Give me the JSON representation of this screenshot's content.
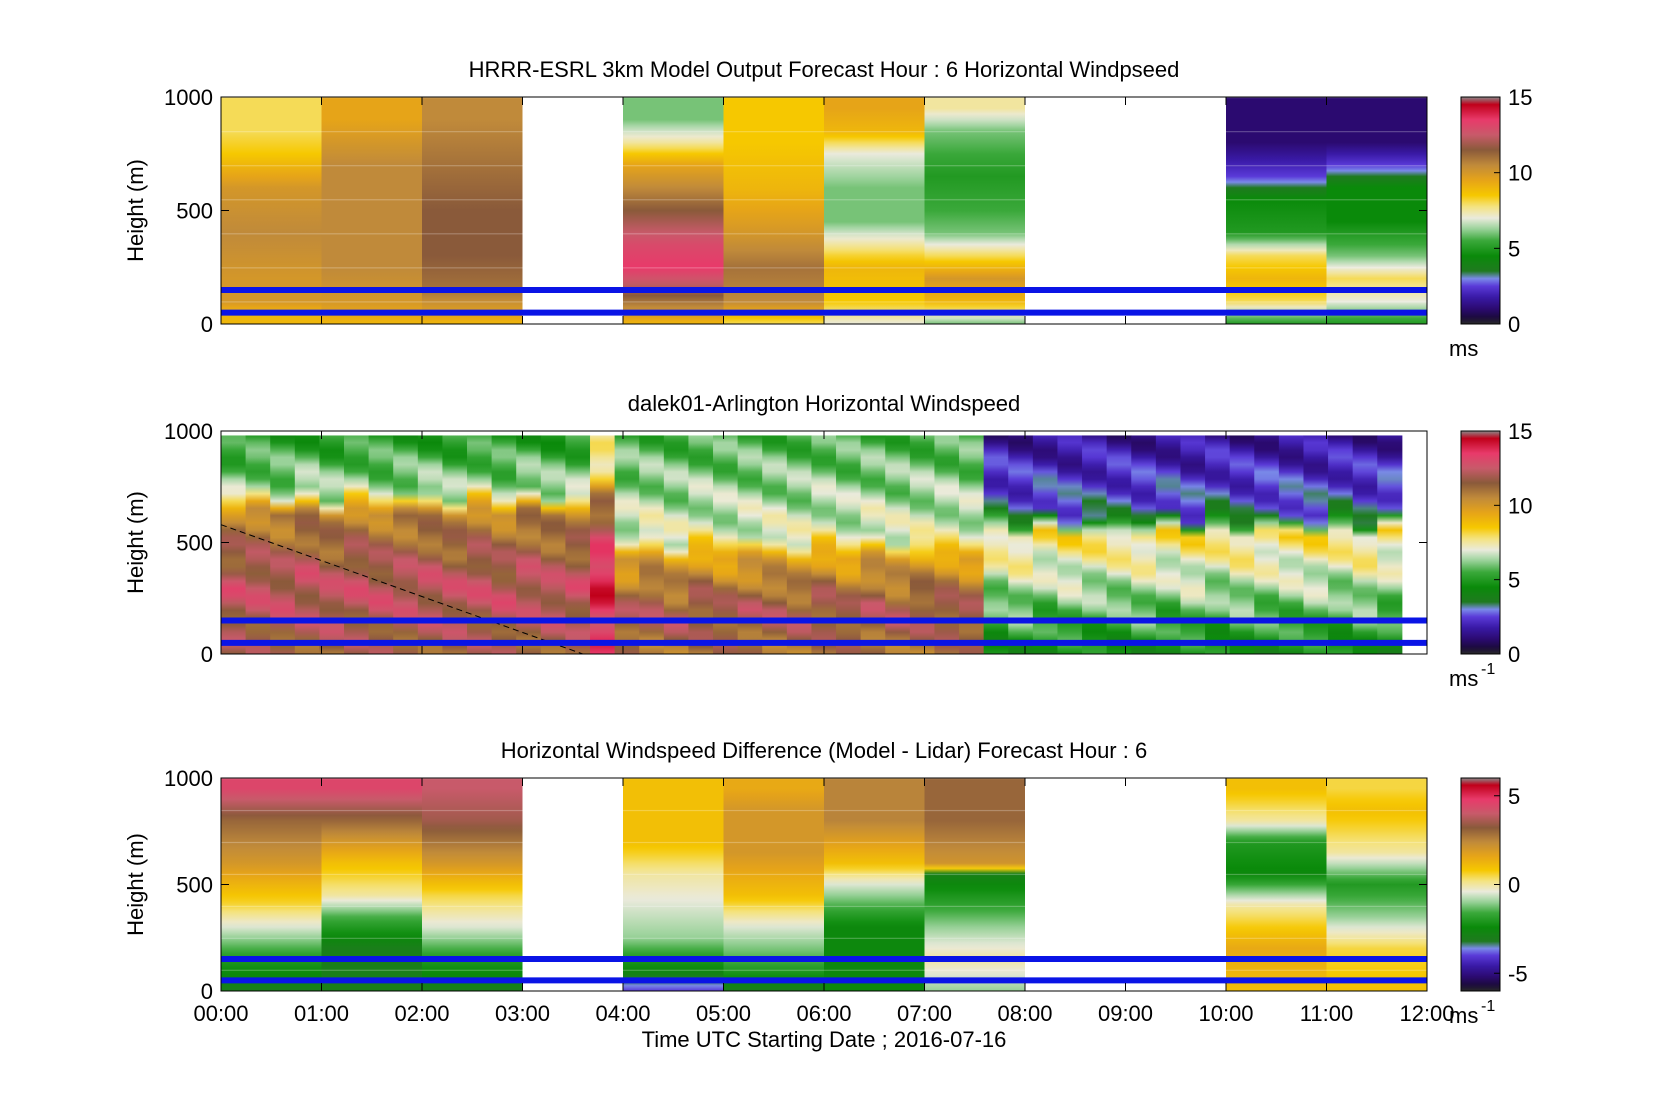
{
  "chart_data": [
    {
      "type": "heatmap",
      "title": "HRRR-ESRL 3km Model Output   Forecast Hour : 6 Horizontal Windpseed",
      "xlabel": "",
      "ylabel": "Height (m)",
      "ylim": [
        0,
        1000
      ],
      "yticks": [
        0,
        500,
        1000
      ],
      "xlim": [
        0,
        12
      ],
      "colorbar": {
        "min": 0,
        "max": 15,
        "ticks": [
          0,
          5,
          10,
          15
        ],
        "label": "ms",
        "label_sup": ""
      },
      "columns": [
        {
          "t": 0,
          "profile": [
            [
              0,
              9
            ],
            [
              50,
              9
            ],
            [
              100,
              10
            ],
            [
              200,
              10
            ],
            [
              400,
              10.5
            ],
            [
              600,
              10
            ],
            [
              750,
              8.5
            ],
            [
              850,
              8
            ]
          ]
        },
        {
          "t": 1,
          "profile": [
            [
              0,
              9
            ],
            [
              100,
              10
            ],
            [
              250,
              10.5
            ],
            [
              500,
              10.5
            ],
            [
              700,
              10.5
            ],
            [
              900,
              9.5
            ]
          ]
        },
        {
          "t": 2,
          "profile": [
            [
              0,
              9
            ],
            [
              150,
              11
            ],
            [
              300,
              11.5
            ],
            [
              500,
              11.5
            ],
            [
              700,
              11
            ],
            [
              900,
              10.5
            ]
          ]
        },
        {
          "t": 4,
          "profile": [
            [
              0,
              9
            ],
            [
              150,
              12
            ],
            [
              250,
              13.5
            ],
            [
              350,
              13
            ],
            [
              500,
              11.5
            ],
            [
              600,
              10.5
            ],
            [
              700,
              9.5
            ],
            [
              800,
              7.5
            ],
            [
              900,
              6
            ]
          ]
        },
        {
          "t": 5,
          "profile": [
            [
              0,
              8
            ],
            [
              100,
              10.5
            ],
            [
              250,
              11
            ],
            [
              400,
              10
            ],
            [
              600,
              9
            ],
            [
              800,
              8.5
            ],
            [
              900,
              8.5
            ]
          ]
        },
        {
          "t": 6,
          "profile": [
            [
              0,
              7
            ],
            [
              100,
              8.5
            ],
            [
              250,
              9
            ],
            [
              350,
              7.5
            ],
            [
              450,
              6
            ],
            [
              600,
              6
            ],
            [
              750,
              7
            ],
            [
              850,
              9
            ],
            [
              950,
              9.5
            ]
          ]
        },
        {
          "t": 7,
          "profile": [
            [
              0,
              6
            ],
            [
              100,
              9
            ],
            [
              200,
              10
            ],
            [
              300,
              8
            ],
            [
              400,
              6
            ],
            [
              500,
              5.5
            ],
            [
              650,
              5
            ],
            [
              850,
              6
            ],
            [
              950,
              7.5
            ]
          ]
        },
        {
          "t": 10,
          "profile": [
            [
              0,
              5
            ],
            [
              100,
              8
            ],
            [
              200,
              9
            ],
            [
              300,
              8
            ],
            [
              400,
              5
            ],
            [
              550,
              4.5
            ],
            [
              650,
              2.5
            ],
            [
              800,
              1
            ],
            [
              1000,
              1
            ]
          ]
        },
        {
          "t": 11,
          "profile": [
            [
              0,
              5
            ],
            [
              100,
              7
            ],
            [
              200,
              8
            ],
            [
              300,
              6
            ],
            [
              450,
              4.5
            ],
            [
              600,
              4.5
            ],
            [
              700,
              2.5
            ],
            [
              800,
              1
            ],
            [
              1000,
              1
            ]
          ]
        }
      ],
      "hlines": [
        150,
        50
      ],
      "diagonal": null
    },
    {
      "type": "heatmap",
      "title": "dalek01-Arlington  Horizontal Windspeed",
      "xlabel": "",
      "ylabel": "Height (m)",
      "ylim": [
        0,
        1000
      ],
      "yticks": [
        0,
        500,
        1000
      ],
      "xlim": [
        0,
        12
      ],
      "colorbar": {
        "min": 0,
        "max": 15,
        "ticks": [
          0,
          5,
          10,
          15
        ],
        "label": "ms",
        "label_sup": "-1"
      },
      "lidar_regimes": [
        {
          "t0": 0,
          "t1": 3.6,
          "low": 12.5,
          "mid": 10.5,
          "top": 5,
          "split0": 300,
          "split1": 650
        },
        {
          "t0": 3.6,
          "t1": 4.0,
          "low": 14,
          "mid": 11,
          "top": 7,
          "split0": 350,
          "split1": 700
        },
        {
          "t0": 4.0,
          "t1": 7.6,
          "low": 12,
          "mid": 9.5,
          "top": 5.5,
          "split0": 200,
          "split1": 450
        },
        {
          "t0": 7.6,
          "t1": 12,
          "low": 5.5,
          "mid": 8,
          "top": 1.5,
          "split0": 150,
          "split1": 550
        }
      ],
      "hlines": [
        150,
        50
      ],
      "diagonal": {
        "x0": 0,
        "y0": 580,
        "x1": 3.6,
        "y1": 0
      }
    },
    {
      "type": "heatmap",
      "title": "Horizontal Windspeed Difference (Model - Lidar) Forecast Hour : 6",
      "xlabel": "Time UTC  Starting Date ; 2016-07-16",
      "ylabel": "Height (m)",
      "ylim": [
        0,
        1000
      ],
      "yticks": [
        0,
        500,
        1000
      ],
      "xlim": [
        0,
        12
      ],
      "xticks": [
        "00:00",
        "01:00",
        "02:00",
        "03:00",
        "04:00",
        "05:00",
        "06:00",
        "07:00",
        "08:00",
        "09:00",
        "10:00",
        "11:00",
        "12:00"
      ],
      "colorbar": {
        "min": -6,
        "max": 6,
        "ticks": [
          -5,
          0,
          5
        ],
        "label": "ms",
        "label_sup": "-1"
      },
      "columns": [
        {
          "t": 0,
          "profile": [
            [
              0,
              -3
            ],
            [
              150,
              -2
            ],
            [
              300,
              -0.5
            ],
            [
              400,
              0.5
            ],
            [
              600,
              2
            ],
            [
              800,
              3
            ],
            [
              950,
              4.5
            ]
          ]
        },
        {
          "t": 1,
          "profile": [
            [
              0,
              -3
            ],
            [
              200,
              -3
            ],
            [
              350,
              -1.5
            ],
            [
              450,
              0
            ],
            [
              600,
              1
            ],
            [
              800,
              3
            ],
            [
              950,
              4.5
            ]
          ]
        },
        {
          "t": 2,
          "profile": [
            [
              0,
              -3
            ],
            [
              150,
              -2
            ],
            [
              300,
              -0.5
            ],
            [
              450,
              0.5
            ],
            [
              600,
              2
            ],
            [
              800,
              3.5
            ],
            [
              950,
              4
            ]
          ]
        },
        {
          "t": 4,
          "profile": [
            [
              0,
              -4
            ],
            [
              100,
              -2.5
            ],
            [
              250,
              -1
            ],
            [
              400,
              -0.5
            ],
            [
              550,
              0
            ],
            [
              700,
              1
            ],
            [
              900,
              1
            ]
          ]
        },
        {
          "t": 5,
          "profile": [
            [
              0,
              -3
            ],
            [
              150,
              -1.5
            ],
            [
              300,
              -0.5
            ],
            [
              450,
              1
            ],
            [
              650,
              2
            ],
            [
              850,
              2
            ],
            [
              950,
              1.5
            ]
          ]
        },
        {
          "t": 6,
          "profile": [
            [
              0,
              -2.5
            ],
            [
              300,
              -2.5
            ],
            [
              500,
              -0.5
            ],
            [
              600,
              1
            ],
            [
              800,
              2.5
            ],
            [
              950,
              2.5
            ]
          ]
        },
        {
          "t": 7,
          "profile": [
            [
              0,
              -1
            ],
            [
              150,
              0
            ],
            [
              300,
              -1
            ],
            [
              500,
              -2.5
            ],
            [
              560,
              -3
            ],
            [
              580,
              2
            ],
            [
              800,
              3
            ],
            [
              950,
              3
            ]
          ]
        },
        {
          "t": 10,
          "profile": [
            [
              0,
              1
            ],
            [
              200,
              1.5
            ],
            [
              400,
              0
            ],
            [
              550,
              -2.5
            ],
            [
              700,
              -2
            ],
            [
              800,
              0
            ],
            [
              950,
              1
            ]
          ]
        },
        {
          "t": 11,
          "profile": [
            [
              0,
              1
            ],
            [
              200,
              0.5
            ],
            [
              350,
              -1
            ],
            [
              500,
              -2
            ],
            [
              650,
              0
            ],
            [
              850,
              1
            ],
            [
              950,
              0.5
            ]
          ]
        }
      ],
      "hlines": [
        150,
        50
      ],
      "diagonal": null
    }
  ],
  "colors": {
    "overlay_line": "#0a14e6",
    "background": "#ffffff"
  }
}
